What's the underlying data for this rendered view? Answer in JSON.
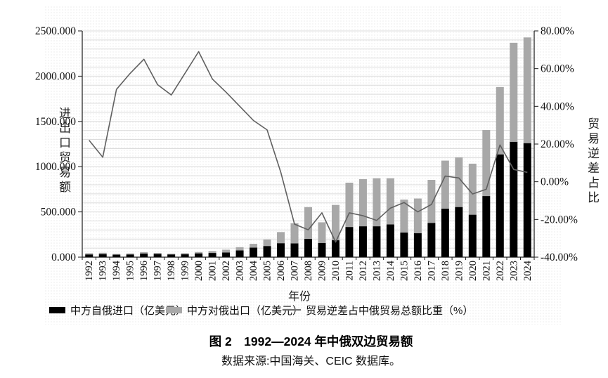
{
  "figure": {
    "caption": "图 2　1992—2024 年中俄双边贸易额",
    "source_note": "数据来源:中国海关、CEIC 数据库。"
  },
  "chart_data": {
    "type": "bar",
    "subtype": "stacked-bars-with-secondary-axis-line",
    "title": "",
    "categories": [
      "1992",
      "1993",
      "1994",
      "1995",
      "1996",
      "1997",
      "1998",
      "1999",
      "2000",
      "2001",
      "2002",
      "2003",
      "2004",
      "2005",
      "2006",
      "2007",
      "2008",
      "2009",
      "2010",
      "2011",
      "2012",
      "2013",
      "2014",
      "2015",
      "2016",
      "2017",
      "2018",
      "2019",
      "2020",
      "2021",
      "2022",
      "2023",
      "2024"
    ],
    "series": [
      {
        "name": "中方自俄进口（亿美元）",
        "type": "bar",
        "stack": "trade",
        "color": "#000000",
        "values": [
          30,
          34,
          27,
          30,
          41,
          36,
          30,
          33,
          42,
          46,
          52,
          74,
          105,
          123,
          154,
          152,
          203,
          157,
          187,
          333,
          341,
          341,
          362,
          272,
          264,
          379,
          536,
          554,
          469,
          675,
          1136,
          1275,
          1260
        ]
      },
      {
        "name": "中方对俄出口（亿美元）",
        "type": "bar",
        "stack": "trade",
        "color": "#a8a8a8",
        "values": [
          13,
          14,
          9,
          11,
          13,
          10,
          9,
          11,
          14,
          21,
          30,
          36,
          42,
          72,
          123,
          223,
          350,
          228,
          390,
          490,
          521,
          531,
          510,
          364,
          384,
          475,
          531,
          549,
          564,
          730,
          744,
          1094,
          1168
        ]
      },
      {
        "name": "贸易逆差占中俄贸易总额比重（%）",
        "type": "line",
        "axis": "right",
        "color": "#606060",
        "values": [
          22,
          13,
          49,
          57.5,
          65,
          51.5,
          46,
          57.5,
          69,
          54.5,
          47.5,
          40,
          32.5,
          27.5,
          5,
          -22.5,
          -25.5,
          -16.5,
          -32,
          -16.5,
          -18,
          -20.5,
          -14,
          -11,
          -16,
          -12,
          3,
          2,
          -6.5,
          -4,
          19.5,
          6.5,
          5
        ]
      }
    ],
    "x_axis": {
      "title": "年份"
    },
    "left_axis": {
      "title": "进出口贸易额",
      "min": 0,
      "max": 2500,
      "tick_step": 500,
      "tick_labels": [
        "0.000",
        "500.000",
        "1000.000",
        "1500.000",
        "2000.000",
        "2500.000"
      ]
    },
    "right_axis": {
      "title": "贸易逆差占比",
      "min": -40,
      "max": 80,
      "tick_step": 20,
      "tick_labels": [
        "-40.00%",
        "-20.00%",
        "0.00%",
        "20.00%",
        "40.00%",
        "60.00%",
        "80.00%"
      ]
    },
    "grid": {
      "horizontal_step": 100,
      "color": "#dcdcdc"
    },
    "legend_position": "bottom"
  }
}
